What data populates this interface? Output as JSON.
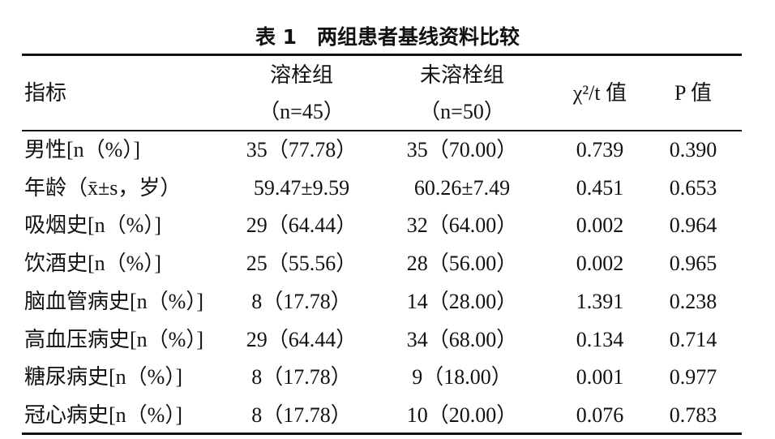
{
  "title": "表 1　两组患者基线资料比较",
  "table": {
    "header": [
      [
        "指标"
      ],
      [
        "溶栓组",
        "（n=45）"
      ],
      [
        "未溶栓组",
        "（n=50）"
      ],
      [
        "χ²/t 值"
      ],
      [
        "P 值"
      ]
    ],
    "rows": [
      [
        "男性[n（%）]",
        "35（77.78）",
        "35（70.00）",
        "0.739",
        "0.390"
      ],
      [
        "年龄（x̄±s，岁）",
        "59.47±9.59",
        "60.26±7.49",
        "0.451",
        "0.653"
      ],
      [
        "吸烟史[n（%）]",
        "29（64.44）",
        "32（64.00）",
        "0.002",
        "0.964"
      ],
      [
        "饮酒史[n（%）]",
        "25（55.56）",
        "28（56.00）",
        "0.002",
        "0.965"
      ],
      [
        "脑血管病史[n（%）]",
        "8（17.78）",
        "14（28.00）",
        "1.391",
        "0.238"
      ],
      [
        "高血压病史[n（%）]",
        "29（64.44）",
        "34（68.00）",
        "0.134",
        "0.714"
      ],
      [
        "糖尿病史[n（%）]",
        "8（17.78）",
        "9（18.00）",
        "0.001",
        "0.977"
      ],
      [
        "冠心病史[n（%）]",
        "8（17.78）",
        "10（20.00）",
        "0.076",
        "0.783"
      ]
    ]
  }
}
